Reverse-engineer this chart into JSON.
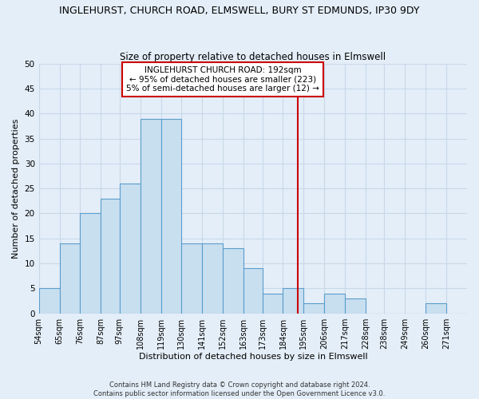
{
  "title": "INGLEHURST, CHURCH ROAD, ELMSWELL, BURY ST EDMUNDS, IP30 9DY",
  "subtitle": "Size of property relative to detached houses in Elmswell",
  "xlabel": "Distribution of detached houses by size in Elmswell",
  "ylabel": "Number of detached properties",
  "footer_lines": [
    "Contains HM Land Registry data © Crown copyright and database right 2024.",
    "Contains public sector information licensed under the Open Government Licence v3.0."
  ],
  "bin_labels": [
    "54sqm",
    "65sqm",
    "76sqm",
    "87sqm",
    "97sqm",
    "108sqm",
    "119sqm",
    "130sqm",
    "141sqm",
    "152sqm",
    "163sqm",
    "173sqm",
    "184sqm",
    "195sqm",
    "206sqm",
    "217sqm",
    "228sqm",
    "238sqm",
    "249sqm",
    "260sqm",
    "271sqm"
  ],
  "bin_edges": [
    54,
    65,
    76,
    87,
    97,
    108,
    119,
    130,
    141,
    152,
    163,
    173,
    184,
    195,
    206,
    217,
    228,
    238,
    249,
    260,
    271,
    282
  ],
  "counts": [
    5,
    14,
    20,
    23,
    26,
    39,
    39,
    14,
    14,
    13,
    9,
    4,
    5,
    2,
    4,
    3,
    0,
    0,
    0,
    2,
    0
  ],
  "bar_color": "#c8dff0",
  "bar_edge_color": "#5b9dcc",
  "vline_x": 192,
  "vline_color": "#cc0000",
  "annotation_text": "INGLEHURST CHURCH ROAD: 192sqm\n← 95% of detached houses are smaller (223)\n5% of semi-detached houses are larger (12) →",
  "annotation_box_color": "#ffffff",
  "annotation_box_edgecolor": "#cc0000",
  "ylim": [
    0,
    50
  ],
  "yticks": [
    0,
    5,
    10,
    15,
    20,
    25,
    30,
    35,
    40,
    45,
    50
  ],
  "grid_color": "#c8d8e8",
  "background_color": "#e4eef8",
  "title_fontsize": 9,
  "subtitle_fontsize": 8.5,
  "xlabel_fontsize": 8,
  "ylabel_fontsize": 8,
  "tick_fontsize": 7,
  "ytick_fontsize": 7.5,
  "annotation_fontsize": 7.5,
  "footer_fontsize": 6
}
